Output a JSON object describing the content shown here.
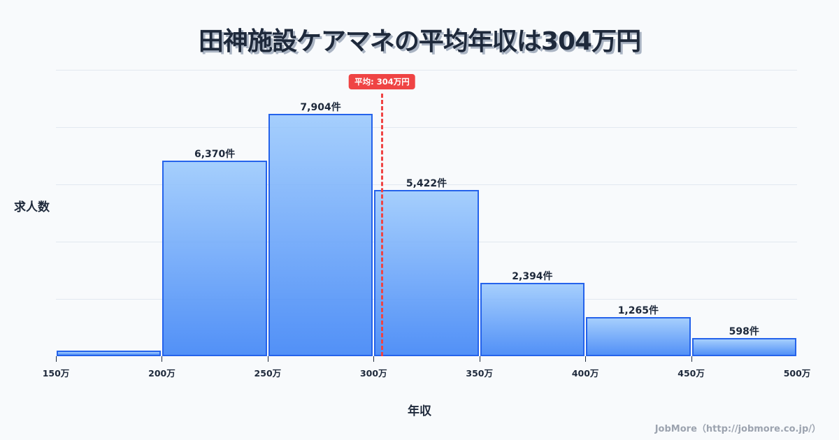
{
  "title": "田神施設ケアマネの平均年収は304万円",
  "y_axis_label": "求人数",
  "x_axis_label": "年収",
  "credit": "JobMore（http://jobmore.co.jp/）",
  "mean_badge": "平均: 304万円",
  "colors": {
    "background": "#f8fafc",
    "bar_top": "#a6cffc",
    "bar_bottom": "#4f8af5",
    "bar_border": "#2563eb",
    "mean_line": "#ef4444",
    "text": "#1e293b",
    "grid": "#e2e8f0",
    "credit": "#9ca3af"
  },
  "bars": [
    {
      "range": "150万-200万",
      "value": 180,
      "label": ""
    },
    {
      "range": "200万-250万",
      "value": 6370,
      "label": "6,370件"
    },
    {
      "range": "250万-300万",
      "value": 7904,
      "label": "7,904件"
    },
    {
      "range": "300万-350万",
      "value": 5422,
      "label": "5,422件"
    },
    {
      "range": "350万-400万",
      "value": 2394,
      "label": "2,394件"
    },
    {
      "range": "400万-450万",
      "value": 1265,
      "label": "1,265件"
    },
    {
      "range": "450万-500万",
      "value": 598,
      "label": "598件"
    }
  ],
  "x_ticks": [
    "150万",
    "200万",
    "250万",
    "300万",
    "350万",
    "400万",
    "450万",
    "500万"
  ],
  "chart_data": {
    "type": "bar",
    "title": "田神施設ケアマネの平均年収は304万円",
    "xlabel": "年収",
    "ylabel": "求人数",
    "categories": [
      "150-200万",
      "200-250万",
      "250-300万",
      "300-350万",
      "350-400万",
      "400-450万",
      "450-500万"
    ],
    "bin_edges": [
      150,
      200,
      250,
      300,
      350,
      400,
      450,
      500
    ],
    "values": [
      180,
      6370,
      7904,
      5422,
      2394,
      1265,
      598
    ],
    "value_labels": [
      "",
      "6,370件",
      "7,904件",
      "5,422件",
      "2,394件",
      "1,265件",
      "598件"
    ],
    "x_tick_labels": [
      "150万",
      "200万",
      "250万",
      "300万",
      "350万",
      "400万",
      "450万",
      "500万"
    ],
    "xlim": [
      150,
      500
    ],
    "ylim": [
      0,
      9327
    ],
    "grid": "horizontal",
    "y_tick_labels_shown": false,
    "annotations": [
      {
        "type": "vline",
        "x": 304,
        "style": "dashed",
        "color": "#ef4444",
        "label": "平均: 304万円"
      }
    ],
    "legend": null
  }
}
